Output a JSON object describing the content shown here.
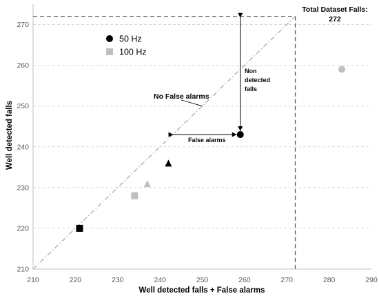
{
  "chart_data": {
    "type": "scatter",
    "title": "",
    "xlabel": "Well detected falls + False alarms",
    "ylabel": "Well detected falls",
    "xlim": [
      210,
      290
    ],
    "ylim": [
      210,
      275
    ],
    "x_ticks": [
      210,
      220,
      230,
      240,
      250,
      260,
      270,
      280,
      290
    ],
    "y_ticks": [
      210,
      220,
      230,
      240,
      250,
      260,
      270
    ],
    "grid": "horizontal-dashed",
    "legend_position": "upper-left",
    "legend": [
      {
        "label": "50 Hz",
        "marker": "circle",
        "color": "#000000"
      },
      {
        "label": "100 Hz",
        "marker": "square",
        "color": "#bfbfbf"
      }
    ],
    "series": [
      {
        "name": "50 Hz",
        "color": "#000000",
        "points": [
          {
            "x": 221,
            "y": 220,
            "marker": "square"
          },
          {
            "x": 242,
            "y": 236,
            "marker": "triangle"
          },
          {
            "x": 259,
            "y": 243,
            "marker": "circle"
          }
        ]
      },
      {
        "name": "100 Hz",
        "color": "#bfbfbf",
        "points": [
          {
            "x": 234,
            "y": 228,
            "marker": "square"
          },
          {
            "x": 237,
            "y": 231,
            "marker": "triangle"
          },
          {
            "x": 283,
            "y": 259,
            "marker": "circle"
          }
        ]
      }
    ],
    "reference_lines": {
      "diagonal": {
        "from": [
          210,
          210
        ],
        "to": [
          272,
          272
        ],
        "style": "dash-dot",
        "color": "#a6a6a6"
      },
      "total_horizontal": {
        "y": 272,
        "style": "dashed",
        "color": "#595959"
      },
      "total_vertical": {
        "x": 272,
        "style": "dashed",
        "color": "#595959"
      }
    },
    "annotations": {
      "total_line1": "Total Dataset Falls:",
      "total_line2": "272",
      "no_false_alarms": "No False alarms",
      "non_detected_1": "Non",
      "non_detected_2": "detected",
      "non_detected_3": "falls",
      "false_alarms": "False alarms"
    },
    "arrows": {
      "non_detected": {
        "x": 259,
        "y_from": 272,
        "y_to": 243
      },
      "false_alarms": {
        "y": 243,
        "x_from": 243,
        "x_to": 259
      },
      "no_false_alarms_pointer": {
        "from": [
          245,
          251.5
        ],
        "to": [
          250,
          250
        ]
      }
    }
  }
}
